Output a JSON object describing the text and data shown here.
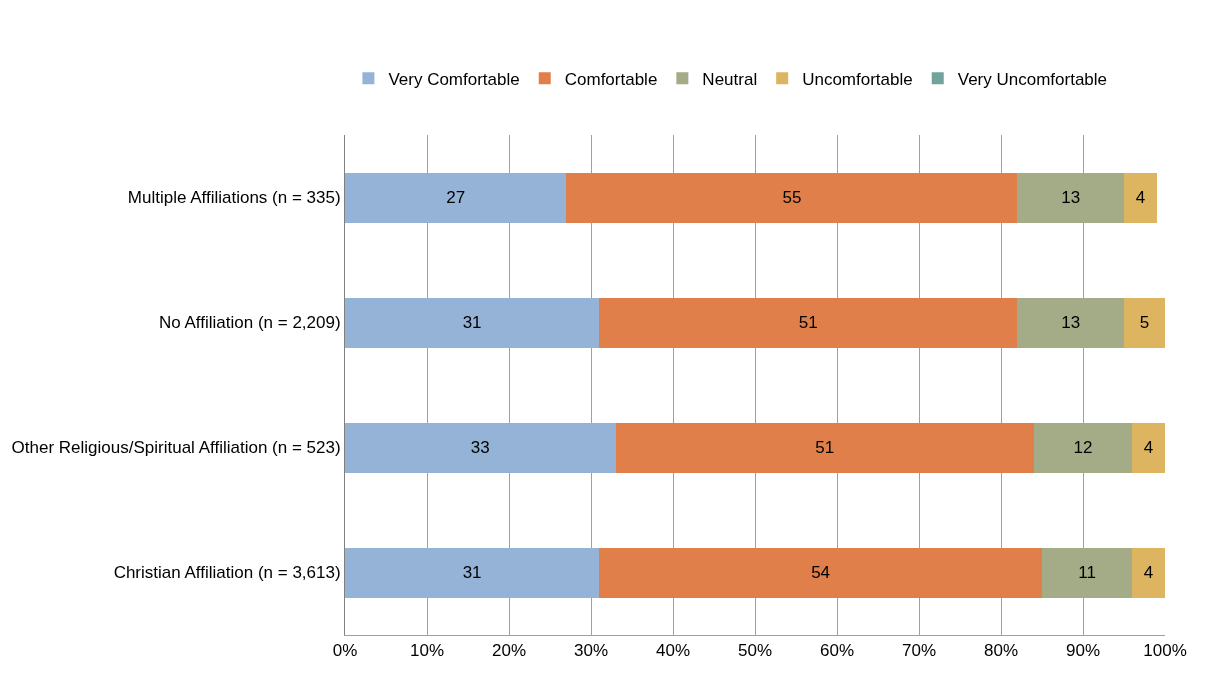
{
  "chart_data": {
    "type": "bar",
    "orientation": "horizontal",
    "stacked": true,
    "categories": [
      "Multiple Affiliations (n = 335)",
      "No Affiliation (n = 2,209)",
      "Other Religious/Spiritual Affiliation (n = 523)",
      "Christian Affiliation (n = 3,613)"
    ],
    "series": [
      {
        "name": "Very Comfortable",
        "color": "#95b3d7",
        "values": [
          27,
          31,
          33,
          31
        ],
        "value_labels": [
          "27",
          "31",
          "33",
          "31"
        ]
      },
      {
        "name": "Comfortable",
        "color": "#e07f4a",
        "values": [
          55,
          51,
          51,
          54
        ],
        "value_labels": [
          "55",
          "51",
          "51",
          "54"
        ]
      },
      {
        "name": "Neutral",
        "color": "#a3ab87",
        "values": [
          13,
          13,
          12,
          11
        ],
        "value_labels": [
          "13",
          "13",
          "12",
          "11"
        ]
      },
      {
        "name": "Uncomfortable",
        "color": "#ddb45f",
        "values": [
          4,
          5,
          4,
          4
        ],
        "value_labels": [
          "4",
          "5",
          "4",
          "4"
        ]
      },
      {
        "name": "Very Uncomfortable",
        "color": "#6fa39b",
        "values": [
          null,
          null,
          null,
          null
        ],
        "value_labels": [
          null,
          null,
          null,
          null
        ]
      }
    ],
    "xlim": [
      0,
      100
    ],
    "xticks": [
      {
        "value": 0,
        "label": "0%"
      },
      {
        "value": 10,
        "label": "10%"
      },
      {
        "value": 20,
        "label": "20%"
      },
      {
        "value": 30,
        "label": "30%"
      },
      {
        "value": 40,
        "label": "40%"
      },
      {
        "value": 50,
        "label": "50%"
      },
      {
        "value": 60,
        "label": "60%"
      },
      {
        "value": 70,
        "label": "70%"
      },
      {
        "value": 80,
        "label": "80%"
      },
      {
        "value": 90,
        "label": "90%"
      },
      {
        "value": 100,
        "label": "100%"
      }
    ],
    "grid": "x",
    "legend": "top"
  }
}
